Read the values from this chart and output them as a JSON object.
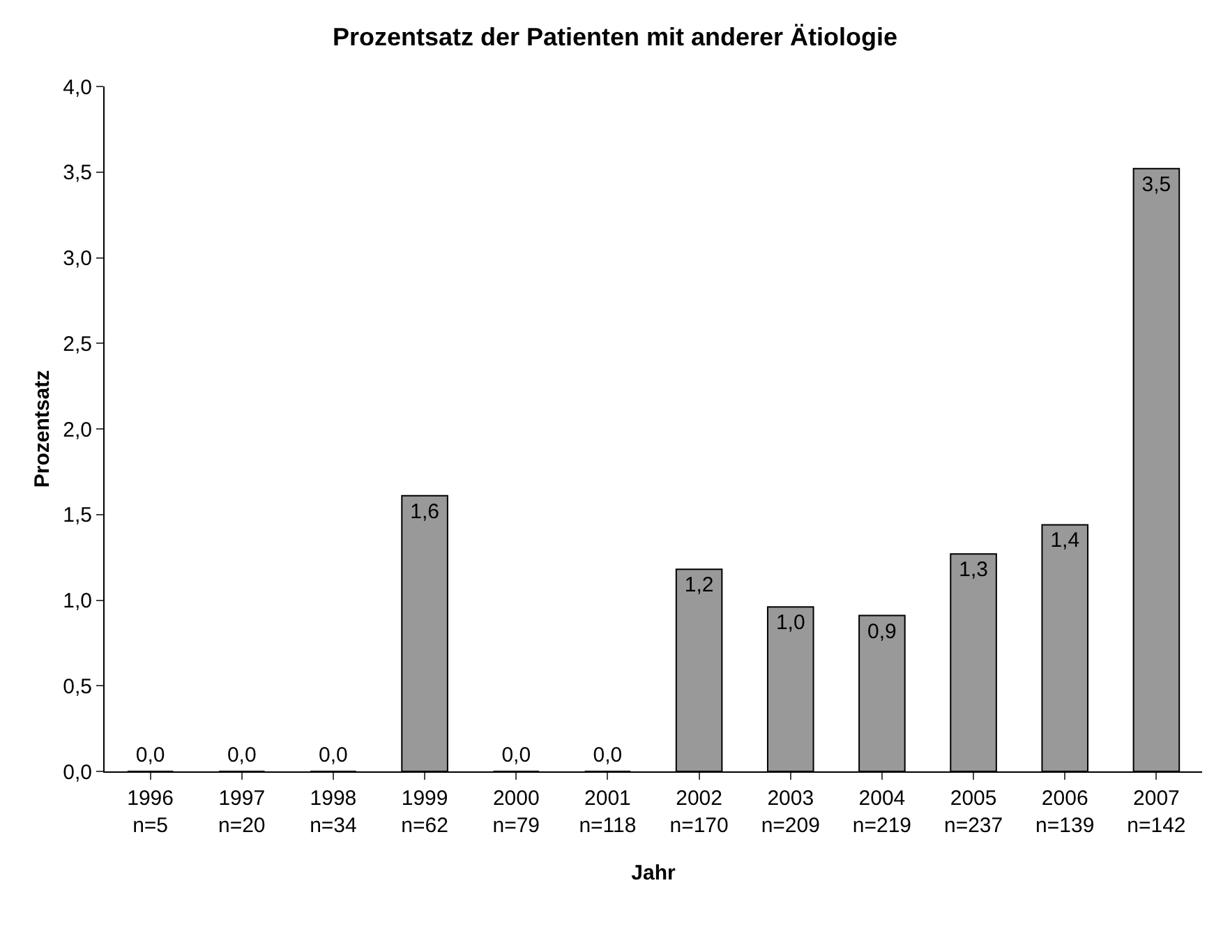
{
  "chart_data": {
    "type": "bar",
    "title": "Prozentsatz der Patienten mit anderer Ätiologie",
    "xlabel": "Jahr",
    "ylabel": "Prozentsatz",
    "categories": [
      "1996\nn=5",
      "1997\nn=20",
      "1998\nn=34",
      "1999\nn=62",
      "2000\nn=79",
      "2001\nn=118",
      "2002\nn=170",
      "2003\nn=209",
      "2004\nn=219",
      "2005\nn=237",
      "2006\nn=139",
      "2007\nn=142"
    ],
    "values": [
      0,
      0,
      0,
      1.61,
      0,
      0,
      1.18,
      0.96,
      0.91,
      1.27,
      1.44,
      3.52
    ],
    "value_labels": [
      "0,0",
      "0,0",
      "0,0",
      "1,6",
      "0,0",
      "0,0",
      "1,2",
      "1,0",
      "0,9",
      "1,3",
      "1,4",
      "3,5"
    ],
    "color": "#999999",
    "ylim": [
      0,
      4
    ],
    "yticks": [
      {
        "value": 0,
        "label": "0,0"
      },
      {
        "value": 0.5,
        "label": "0,5"
      },
      {
        "value": 1,
        "label": "1,0"
      },
      {
        "value": 1.5,
        "label": "1,5"
      },
      {
        "value": 2,
        "label": "2,0"
      },
      {
        "value": 2.5,
        "label": "2,5"
      },
      {
        "value": 3,
        "label": "3,0"
      },
      {
        "value": 3.5,
        "label": "3,5"
      },
      {
        "value": 4,
        "label": "4,0"
      }
    ],
    "grid": false
  }
}
